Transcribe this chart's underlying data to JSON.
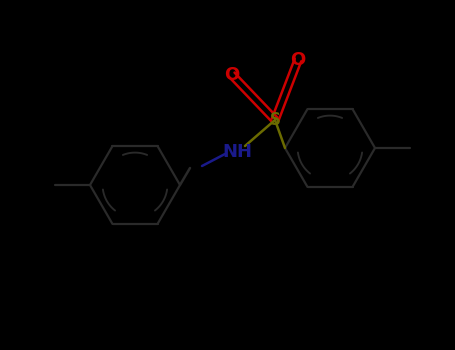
{
  "background_color": "#000000",
  "bond_color": "#1a1a1a",
  "ring_bond_color": "#2a2a2a",
  "S_color": "#6b6b00",
  "N_color": "#1a1a8b",
  "O_color": "#cc0000",
  "figsize": [
    4.55,
    3.5
  ],
  "dpi": 100,
  "S_label": "S",
  "N_label": "NH",
  "O1_label": "O",
  "O2_label": "O"
}
